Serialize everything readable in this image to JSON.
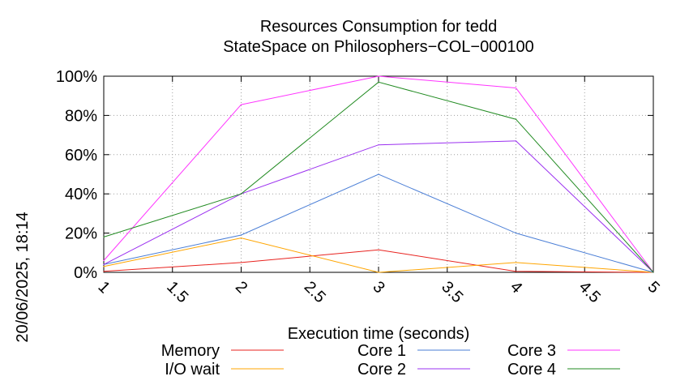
{
  "timestamp": "20/06/2025, 18:14",
  "chart_data": {
    "type": "line",
    "title": "Resources Consumption for tedd",
    "subtitle": "StateSpace on Philosophers−COL−000100",
    "xlabel": "Execution time (seconds)",
    "ylabel": "",
    "xlim": [
      1,
      5
    ],
    "ylim": [
      0,
      100
    ],
    "x_ticks": [
      {
        "value": 1,
        "label": "1"
      },
      {
        "value": 1.5,
        "label": "1.5"
      },
      {
        "value": 2,
        "label": "2"
      },
      {
        "value": 2.5,
        "label": "2.5"
      },
      {
        "value": 3,
        "label": "3"
      },
      {
        "value": 3.5,
        "label": "3.5"
      },
      {
        "value": 4,
        "label": "4"
      },
      {
        "value": 4.5,
        "label": "4.5"
      },
      {
        "value": 5,
        "label": "5"
      }
    ],
    "y_ticks": [
      {
        "value": 0,
        "label": "0%"
      },
      {
        "value": 20,
        "label": "20%"
      },
      {
        "value": 40,
        "label": "40%"
      },
      {
        "value": 60,
        "label": "60%"
      },
      {
        "value": 80,
        "label": "80%"
      },
      {
        "value": 100,
        "label": "100%"
      }
    ],
    "grid": true,
    "legend_position": "bottom",
    "x": [
      1,
      2,
      3,
      4,
      5
    ],
    "series": [
      {
        "name": "Memory",
        "color": "#e8231f",
        "values": [
          0.5,
          5,
          11.5,
          0.5,
          0
        ]
      },
      {
        "name": "I/O wait",
        "color": "#ffa500",
        "values": [
          3,
          17.5,
          0,
          5,
          0
        ]
      },
      {
        "name": "Core 1",
        "color": "#4a7ed6",
        "values": [
          4,
          19,
          50,
          20,
          0
        ]
      },
      {
        "name": "Core 2",
        "color": "#9b30f0",
        "values": [
          4,
          40,
          65,
          67,
          0
        ]
      },
      {
        "name": "Core 3",
        "color": "#ff33ff",
        "values": [
          6,
          85.5,
          100,
          94,
          0
        ]
      },
      {
        "name": "Core 4",
        "color": "#228b22",
        "values": [
          18,
          40,
          97,
          78,
          0
        ]
      }
    ]
  }
}
